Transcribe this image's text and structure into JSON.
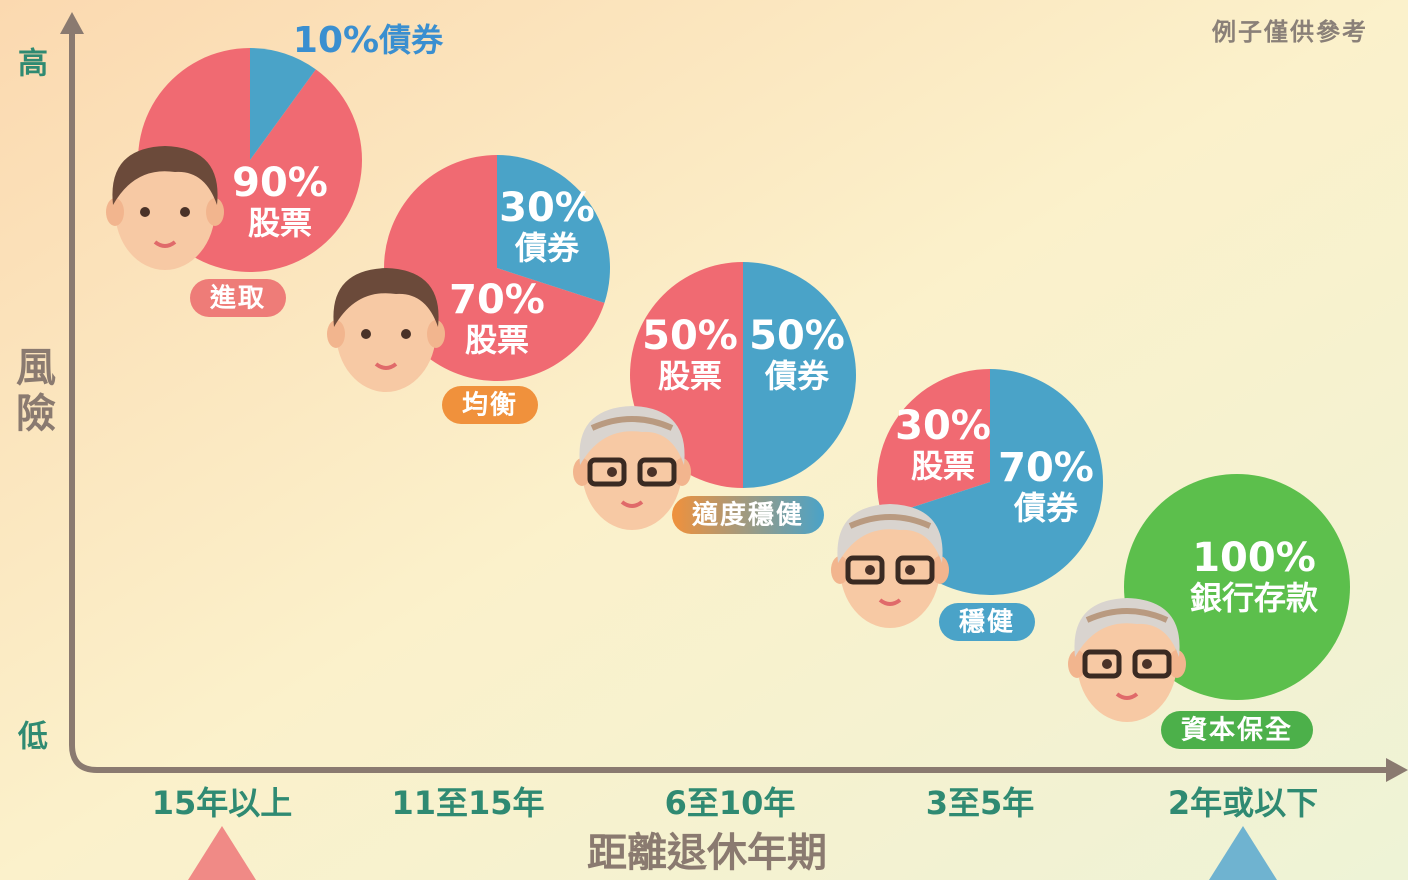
{
  "note": "例子僅供參考",
  "axes": {
    "y_label": "風險",
    "y_high": "高",
    "y_low": "低",
    "x_label": "距離退休年期",
    "categories": [
      "15年以上",
      "11至15年",
      "6至10年",
      "3至5年",
      "2年或以下"
    ]
  },
  "chart_data": [
    {
      "type": "pie",
      "title": "進取",
      "categories": [
        "股票",
        "債券"
      ],
      "values": [
        90,
        10
      ],
      "value_labels": [
        "90%",
        "10%"
      ],
      "colors": [
        "#f06a72",
        "#4aa3c8"
      ]
    },
    {
      "type": "pie",
      "title": "均衡",
      "categories": [
        "股票",
        "債券"
      ],
      "values": [
        70,
        30
      ],
      "value_labels": [
        "70%",
        "30%"
      ],
      "colors": [
        "#f06a72",
        "#4aa3c8"
      ]
    },
    {
      "type": "pie",
      "title": "適度穩健",
      "categories": [
        "股票",
        "債券"
      ],
      "values": [
        50,
        50
      ],
      "value_labels": [
        "50%",
        "50%"
      ],
      "colors": [
        "#f06a72",
        "#4aa3c8"
      ]
    },
    {
      "type": "pie",
      "title": "穩健",
      "categories": [
        "股票",
        "債券"
      ],
      "values": [
        30,
        70
      ],
      "value_labels": [
        "30%",
        "70%"
      ],
      "colors": [
        "#f06a72",
        "#4aa3c8"
      ]
    },
    {
      "type": "pie",
      "title": "資本保全",
      "categories": [
        "銀行存款"
      ],
      "values": [
        100
      ],
      "value_labels": [
        "100%"
      ],
      "colors": [
        "#5cbf4c"
      ]
    }
  ]
}
